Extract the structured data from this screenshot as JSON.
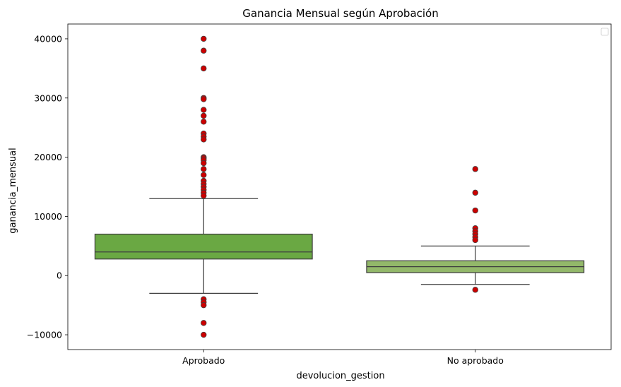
{
  "chart_data": {
    "type": "box",
    "title": "Ganancia Mensual según Aprobación",
    "xlabel": "devolucion_gestion",
    "ylabel": "ganancia_mensual",
    "ylim": [
      -12500,
      42500
    ],
    "yticks": [
      -10000,
      0,
      10000,
      20000,
      30000,
      40000
    ],
    "ytick_labels": [
      "−10000",
      "0",
      "10000",
      "20000",
      "30000",
      "40000"
    ],
    "legend": {
      "visible": true,
      "location": "top-right",
      "entries": []
    },
    "grid": false,
    "categories": [
      "Aprobado",
      "No aprobado"
    ],
    "boxes": [
      {
        "category": "Aprobado",
        "color": "#6aa843",
        "whisker_low": -3000,
        "q1": 2800,
        "median": 4000,
        "q3": 7000,
        "whisker_high": 13000,
        "outliers": [
          40000,
          38000,
          35000,
          30000,
          29800,
          28000,
          27000,
          26000,
          24000,
          23500,
          23000,
          20000,
          19800,
          19500,
          19000,
          18000,
          17000,
          16000,
          15500,
          15000,
          14500,
          14000,
          13500,
          -4000,
          -4500,
          -5000,
          -8000,
          -10000
        ]
      },
      {
        "category": "No aprobado",
        "color": "#93b86a",
        "whisker_low": -1500,
        "q1": 500,
        "median": 1500,
        "q3": 2500,
        "whisker_high": 5000,
        "outliers": [
          18000,
          14000,
          11000,
          8000,
          7500,
          7000,
          6500,
          6000,
          -2400
        ]
      }
    ],
    "outlier_color": "#cc0000"
  }
}
